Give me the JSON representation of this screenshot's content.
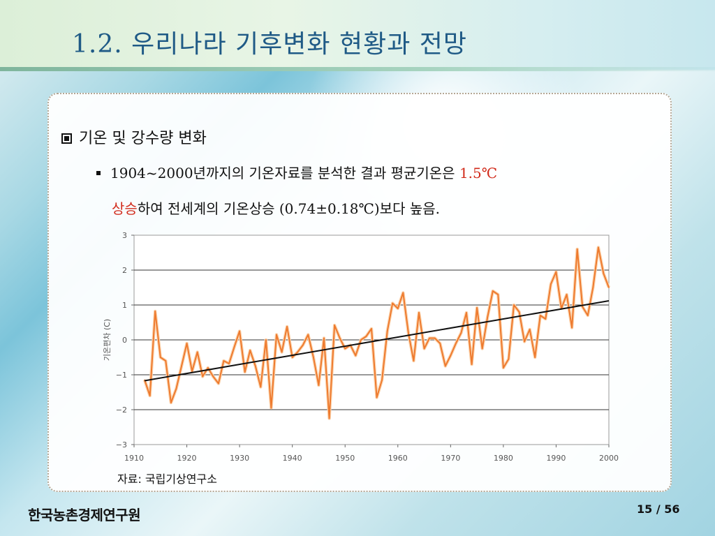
{
  "header": {
    "title": "1.2. 우리나라 기후변화 현황과 전망"
  },
  "content": {
    "bullet1": "기온 및 강수량 변화",
    "line2_a": "1904~2000년까지의 기온자료를 분석한 결과 평균기온은 ",
    "line2_red": "1.5℃",
    "line3_red": "상승",
    "line3_b": "하여 전세계의 기온상승 (0.74±0.18℃)보다 높음."
  },
  "chart_data": {
    "type": "line",
    "ylabel": "기온편차 (C)",
    "xlim": [
      1910,
      2000
    ],
    "ylim": [
      -3,
      3
    ],
    "x_ticks": [
      1910,
      1920,
      1930,
      1940,
      1950,
      1960,
      1970,
      1980,
      1990,
      2000
    ],
    "y_ticks": [
      -3,
      -2,
      -1,
      0,
      1,
      2,
      3
    ],
    "grid": "horizontal",
    "series": [
      {
        "color": "#ee7a2e",
        "x": [
          1912,
          1913,
          1914,
          1915,
          1916,
          1917,
          1918,
          1919,
          1920,
          1921,
          1922,
          1923,
          1924,
          1925,
          1926,
          1927,
          1928,
          1929,
          1930,
          1931,
          1932,
          1933,
          1934,
          1935,
          1936,
          1937,
          1938,
          1939,
          1940,
          1941,
          1942,
          1943,
          1944,
          1945,
          1946,
          1947,
          1948,
          1949,
          1950,
          1951,
          1952,
          1953,
          1954,
          1955,
          1956,
          1957,
          1958,
          1959,
          1960,
          1961,
          1962,
          1963,
          1964,
          1965,
          1966,
          1967,
          1968,
          1969,
          1970,
          1971,
          1972,
          1973,
          1974,
          1975,
          1976,
          1977,
          1978,
          1979,
          1980,
          1981,
          1982,
          1983,
          1984,
          1985,
          1986,
          1987,
          1988,
          1989,
          1990,
          1991,
          1992,
          1993,
          1994,
          1995,
          1996,
          1997,
          1998,
          1999,
          2000
        ],
        "y": [
          -1.15,
          -1.6,
          0.82,
          -0.5,
          -0.6,
          -1.8,
          -1.4,
          -0.75,
          -0.1,
          -0.9,
          -0.35,
          -1.05,
          -0.8,
          -1.05,
          -1.25,
          -0.6,
          -0.68,
          -0.2,
          0.25,
          -0.92,
          -0.3,
          -0.75,
          -1.35,
          0.0,
          -1.95,
          0.15,
          -0.35,
          0.38,
          -0.5,
          -0.35,
          -0.15,
          0.15,
          -0.5,
          -1.3,
          0.05,
          -2.25,
          0.42,
          0.05,
          -0.25,
          -0.15,
          -0.45,
          0.0,
          0.1,
          0.32,
          -1.65,
          -1.15,
          0.25,
          1.05,
          0.9,
          1.35,
          0.2,
          -0.6,
          0.78,
          -0.25,
          0.05,
          0.05,
          -0.1,
          -0.75,
          -0.45,
          -0.1,
          0.2,
          0.78,
          -0.7,
          0.92,
          -0.25,
          0.65,
          1.4,
          1.3,
          -0.8,
          -0.55,
          1.0,
          0.8,
          -0.05,
          0.3,
          -0.5,
          0.7,
          0.6,
          1.6,
          1.95,
          0.9,
          1.3,
          0.35,
          2.6,
          0.95,
          0.7,
          1.5,
          2.65,
          1.9,
          1.5
        ]
      },
      {
        "color": "#111111",
        "x": [
          1912,
          2000
        ],
        "y": [
          -1.17,
          1.12
        ]
      }
    ]
  },
  "source": "자료: 국립기상연구소",
  "footer": {
    "org": "한국농촌경제연구원",
    "page": "15 / 56"
  }
}
